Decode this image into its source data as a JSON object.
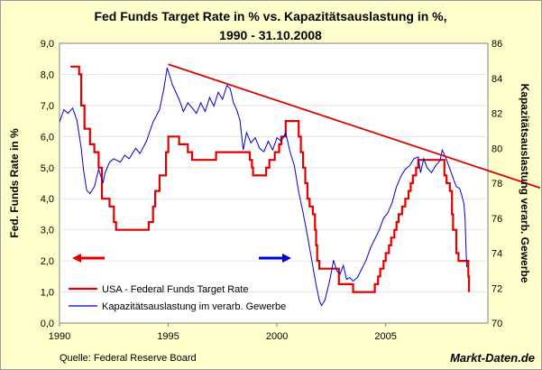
{
  "chart_data": {
    "type": "line",
    "title_line1": "Fed Funds Target Rate in % vs. Kapazitätsauslastung in %,",
    "title_line2": "1990 - 31.10.2008",
    "y_left_label": "Fed. Funds Rate in %",
    "y_right_label": "Kapazitätsauslastung verarb. Gewerbe",
    "y_left_range": [
      0,
      9
    ],
    "y_right_range": [
      70,
      86
    ],
    "x_range": [
      1990,
      2009.7
    ],
    "y_left_ticks": [
      "0,0",
      "1,0",
      "2,0",
      "3,0",
      "4,0",
      "5,0",
      "6,0",
      "7,0",
      "8,0",
      "9,0"
    ],
    "y_right_ticks": [
      "70",
      "72",
      "74",
      "76",
      "78",
      "80",
      "82",
      "84",
      "86"
    ],
    "x_ticks": [
      "1990",
      "1995",
      "2000",
      "2005"
    ],
    "legend": [
      {
        "name": "USA - Federal Funds Target Rate",
        "color": "#e00000"
      },
      {
        "name": "Kapazitätsauslastung im verarb. Gewerbe",
        "color": "#0000cc"
      }
    ],
    "source": "Quelle: Federal Reserve Board",
    "brand": "Markt-Daten.de",
    "colors": {
      "fed": "#e00000",
      "capacity": "#0000cc",
      "trend": "#dd0000",
      "gridline": "#e4e4e4",
      "plot_bg": "#ffffff",
      "page_bg": "#ffffcc"
    },
    "series": [
      {
        "name": "USA - Federal Funds Target Rate",
        "axis": "left",
        "step": true,
        "points": [
          [
            1990.5,
            8.25
          ],
          [
            1990.8,
            8.25
          ],
          [
            1990.9,
            8.0
          ],
          [
            1991.0,
            7.0
          ],
          [
            1991.15,
            6.25
          ],
          [
            1991.4,
            5.75
          ],
          [
            1991.6,
            5.5
          ],
          [
            1991.8,
            5.0
          ],
          [
            1991.95,
            4.0
          ],
          [
            1992.3,
            3.75
          ],
          [
            1992.5,
            3.25
          ],
          [
            1992.6,
            3.0
          ],
          [
            1994.1,
            3.25
          ],
          [
            1994.3,
            3.75
          ],
          [
            1994.4,
            4.25
          ],
          [
            1994.6,
            4.75
          ],
          [
            1994.9,
            5.5
          ],
          [
            1995.0,
            6.0
          ],
          [
            1995.5,
            5.75
          ],
          [
            1995.9,
            5.5
          ],
          [
            1996.1,
            5.25
          ],
          [
            1997.2,
            5.5
          ],
          [
            1998.75,
            5.25
          ],
          [
            1998.85,
            5.0
          ],
          [
            1998.9,
            4.75
          ],
          [
            1999.5,
            5.0
          ],
          [
            1999.65,
            5.25
          ],
          [
            1999.9,
            5.5
          ],
          [
            2000.1,
            5.75
          ],
          [
            2000.2,
            6.0
          ],
          [
            2000.4,
            6.5
          ],
          [
            2001.0,
            6.0
          ],
          [
            2001.1,
            5.5
          ],
          [
            2001.2,
            5.0
          ],
          [
            2001.3,
            4.5
          ],
          [
            2001.4,
            4.0
          ],
          [
            2001.5,
            3.75
          ],
          [
            2001.65,
            3.5
          ],
          [
            2001.75,
            3.0
          ],
          [
            2001.8,
            2.5
          ],
          [
            2001.85,
            2.0
          ],
          [
            2001.95,
            1.75
          ],
          [
            2002.85,
            1.25
          ],
          [
            2003.5,
            1.0
          ],
          [
            2004.5,
            1.25
          ],
          [
            2004.65,
            1.5
          ],
          [
            2004.75,
            1.75
          ],
          [
            2004.9,
            2.0
          ],
          [
            2005.0,
            2.25
          ],
          [
            2005.15,
            2.5
          ],
          [
            2005.25,
            2.75
          ],
          [
            2005.4,
            3.0
          ],
          [
            2005.5,
            3.25
          ],
          [
            2005.6,
            3.5
          ],
          [
            2005.75,
            3.75
          ],
          [
            2005.9,
            4.0
          ],
          [
            2006.05,
            4.25
          ],
          [
            2006.15,
            4.5
          ],
          [
            2006.25,
            4.75
          ],
          [
            2006.4,
            5.0
          ],
          [
            2006.5,
            5.25
          ],
          [
            2007.7,
            4.75
          ],
          [
            2007.8,
            4.5
          ],
          [
            2007.95,
            4.25
          ],
          [
            2008.05,
            3.5
          ],
          [
            2008.1,
            3.0
          ],
          [
            2008.25,
            2.25
          ],
          [
            2008.35,
            2.0
          ],
          [
            2008.8,
            1.5
          ],
          [
            2008.83,
            1.0
          ]
        ]
      },
      {
        "name": "Kapazitätsauslastung im verarb. Gewerbe",
        "axis": "right",
        "points": [
          [
            1990.0,
            81.5
          ],
          [
            1990.2,
            82.2
          ],
          [
            1990.4,
            82.0
          ],
          [
            1990.6,
            82.3
          ],
          [
            1990.8,
            81.6
          ],
          [
            1991.0,
            80.0
          ],
          [
            1991.1,
            78.8
          ],
          [
            1991.25,
            77.6
          ],
          [
            1991.4,
            77.4
          ],
          [
            1991.6,
            77.8
          ],
          [
            1991.8,
            78.8
          ],
          [
            1992.0,
            78.0
          ],
          [
            1992.1,
            78.6
          ],
          [
            1992.3,
            79.2
          ],
          [
            1992.5,
            79.4
          ],
          [
            1992.8,
            79.2
          ],
          [
            1993.0,
            79.6
          ],
          [
            1993.2,
            79.4
          ],
          [
            1993.5,
            80.0
          ],
          [
            1993.7,
            79.7
          ],
          [
            1994.0,
            80.4
          ],
          [
            1994.3,
            81.5
          ],
          [
            1994.6,
            82.2
          ],
          [
            1994.8,
            83.4
          ],
          [
            1994.95,
            84.6
          ],
          [
            1995.05,
            84.2
          ],
          [
            1995.2,
            83.6
          ],
          [
            1995.5,
            82.8
          ],
          [
            1995.7,
            82.1
          ],
          [
            1995.9,
            82.6
          ],
          [
            1996.1,
            82.3
          ],
          [
            1996.3,
            82.0
          ],
          [
            1996.5,
            82.6
          ],
          [
            1996.7,
            82.1
          ],
          [
            1996.9,
            82.9
          ],
          [
            1997.1,
            82.4
          ],
          [
            1997.3,
            83.2
          ],
          [
            1997.5,
            82.8
          ],
          [
            1997.7,
            83.6
          ],
          [
            1997.85,
            83.4
          ],
          [
            1998.0,
            82.6
          ],
          [
            1998.15,
            82.2
          ],
          [
            1998.3,
            81.6
          ],
          [
            1998.45,
            79.9
          ],
          [
            1998.6,
            80.9
          ],
          [
            1998.8,
            80.3
          ],
          [
            1999.0,
            80.6
          ],
          [
            1999.2,
            80.0
          ],
          [
            1999.4,
            79.8
          ],
          [
            1999.6,
            80.4
          ],
          [
            1999.8,
            79.9
          ],
          [
            2000.0,
            80.6
          ],
          [
            2000.2,
            80.4
          ],
          [
            2000.4,
            80.9
          ],
          [
            2000.6,
            79.8
          ],
          [
            2000.8,
            79.0
          ],
          [
            2001.0,
            77.5
          ],
          [
            2001.2,
            76.3
          ],
          [
            2001.4,
            75.0
          ],
          [
            2001.6,
            73.6
          ],
          [
            2001.8,
            72.2
          ],
          [
            2001.95,
            71.3
          ],
          [
            2002.05,
            71.0
          ],
          [
            2002.2,
            71.3
          ],
          [
            2002.4,
            72.3
          ],
          [
            2002.5,
            72.9
          ],
          [
            2002.6,
            73.6
          ],
          [
            2002.75,
            73.0
          ],
          [
            2002.9,
            72.8
          ],
          [
            2003.05,
            73.3
          ],
          [
            2003.2,
            72.5
          ],
          [
            2003.35,
            72.6
          ],
          [
            2003.5,
            72.4
          ],
          [
            2003.7,
            72.6
          ],
          [
            2003.9,
            73.1
          ],
          [
            2004.1,
            73.6
          ],
          [
            2004.3,
            74.3
          ],
          [
            2004.5,
            74.8
          ],
          [
            2004.7,
            75.3
          ],
          [
            2004.9,
            76.0
          ],
          [
            2005.1,
            76.3
          ],
          [
            2005.3,
            76.9
          ],
          [
            2005.5,
            77.8
          ],
          [
            2005.7,
            78.4
          ],
          [
            2005.9,
            78.8
          ],
          [
            2006.1,
            79.0
          ],
          [
            2006.3,
            79.4
          ],
          [
            2006.5,
            79.5
          ],
          [
            2006.6,
            78.6
          ],
          [
            2006.75,
            79.4
          ],
          [
            2006.9,
            78.9
          ],
          [
            2007.1,
            78.6
          ],
          [
            2007.3,
            79.0
          ],
          [
            2007.5,
            79.3
          ],
          [
            2007.6,
            79.9
          ],
          [
            2007.75,
            79.5
          ],
          [
            2007.9,
            79.0
          ],
          [
            2008.1,
            78.3
          ],
          [
            2008.25,
            77.8
          ],
          [
            2008.4,
            77.7
          ],
          [
            2008.5,
            77.3
          ],
          [
            2008.6,
            76.8
          ],
          [
            2008.65,
            76.0
          ],
          [
            2008.7,
            74.0
          ],
          [
            2008.73,
            73.2
          ]
        ]
      },
      {
        "name": "trendline",
        "axis": "right",
        "points": [
          [
            1995.0,
            84.8
          ],
          [
            2010.0,
            78.6
          ]
        ]
      }
    ]
  }
}
